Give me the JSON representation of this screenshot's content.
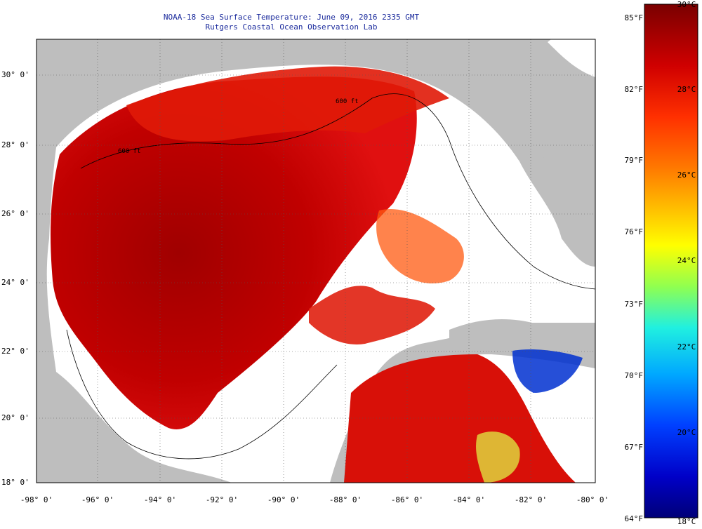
{
  "title_line1": "NOAA-18 Sea Surface Temperature:  June 09, 2016 2335 GMT",
  "title_line2": "Rutgers Coastal Ocean Observation Lab",
  "lat_labels": [
    "30° 0'",
    "28° 0'",
    "26° 0'",
    "24° 0'",
    "22° 0'",
    "20° 0'",
    "18° 0'"
  ],
  "lon_labels": [
    "-98° 0'",
    "-96° 0'",
    "-94° 0'",
    "-92° 0'",
    "-90° 0'",
    "-88° 0'",
    "-86° 0'",
    "-84° 0'",
    "-82° 0'",
    "-80° 0'"
  ],
  "colorbar": {
    "fahrenheit_labels": [
      "85°F",
      "82°F",
      "79°F",
      "76°F",
      "73°F",
      "70°F",
      "67°F",
      "64°F"
    ],
    "celsius_labels": [
      "30°C",
      "28°C",
      "26°C",
      "24°C",
      "22°C",
      "20°C",
      "18°C"
    ],
    "colors": [
      "#7a0000",
      "#c00000",
      "#ff2000",
      "#ff7000",
      "#ffb000",
      "#ffff00",
      "#a0ff40",
      "#30f0d0",
      "#00b0ff",
      "#0050ff",
      "#0000c0",
      "#000080"
    ]
  },
  "contour_labels": [
    "600 ft",
    "600 ft"
  ],
  "colors": {
    "land": "#bebebe",
    "no_data": "#ffffff",
    "title": "#1a2a9c"
  }
}
